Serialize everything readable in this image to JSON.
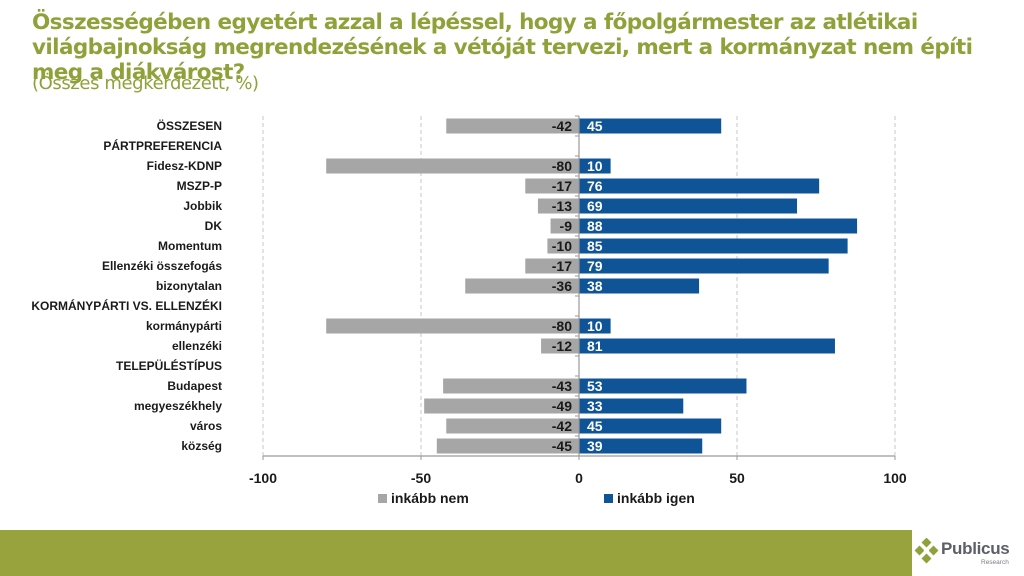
{
  "title": "Összességében egyetért azzal a lépéssel, hogy a főpolgármester az atlétikai világbajnokság megrendezésének a vétóját tervezi, mert a kormányzat nem építi meg a diákvárost?",
  "subtitle": "(Összes megkérdezett, %)",
  "brand": {
    "name": "Publicus",
    "tagline": "Research",
    "band_color": "#98a33e",
    "logo_green": "#8fa23a",
    "logo_gray": "#5b5f66"
  },
  "chart_data": {
    "type": "bar",
    "orientation": "horizontal",
    "stacked": "diverging",
    "title": "Összességében egyetért azzal a lépéssel, hogy a főpolgármester az atlétikai világbajnokság megrendezésének a vétóját tervezi, mert a kormányzat nem építi meg a diákvárost?",
    "subtitle": "(Összes megkérdezett, %)",
    "xlabel": "",
    "ylabel": "",
    "xlim": [
      -100,
      100
    ],
    "xticks": [
      -100,
      -50,
      0,
      50,
      100
    ],
    "xtick_labels": [
      "-100",
      "-50",
      "0",
      "50",
      "100"
    ],
    "grid": "vertical dashed",
    "legend_position": "bottom-center",
    "categories": [
      "ÖSSZESEN",
      "PÁRTPREFERENCIA",
      "Fidesz-KDNP",
      "MSZP-P",
      "Jobbik",
      "DK",
      "Momentum",
      "Ellenzéki összefogás",
      "bizonytalan",
      "KORMÁNYPÁRTI VS. ELLENZÉKI",
      "kormánypárti",
      "ellenzéki",
      "TELEPÜLÉSTÍPUS",
      "Budapest",
      "megyeszékhely",
      "város",
      "község"
    ],
    "series": [
      {
        "name": "inkább nem",
        "color": "#a6a6a6",
        "values": [
          -42,
          null,
          -80,
          -17,
          -13,
          -9,
          -10,
          -17,
          -36,
          null,
          -80,
          -12,
          null,
          -43,
          -49,
          -42,
          -45
        ]
      },
      {
        "name": "inkább igen",
        "color": "#0f5496",
        "values": [
          45,
          null,
          10,
          76,
          69,
          88,
          85,
          79,
          38,
          null,
          10,
          81,
          null,
          53,
          33,
          45,
          39
        ]
      }
    ]
  }
}
